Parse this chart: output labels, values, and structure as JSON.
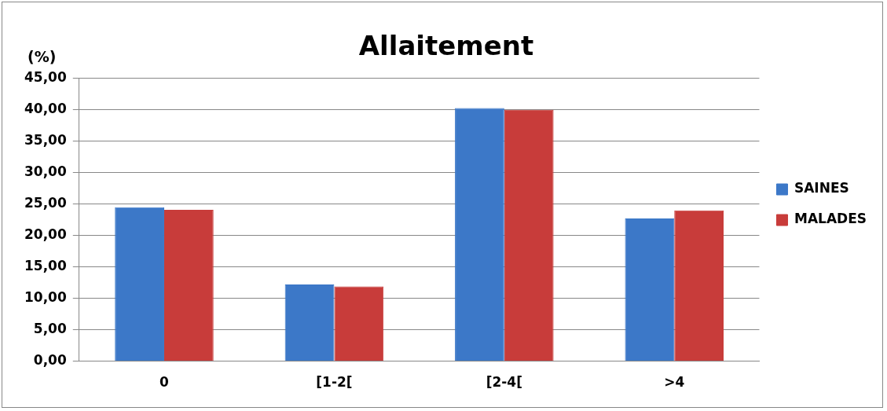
{
  "chart_data": {
    "type": "bar",
    "title": "Allaitement",
    "ylabel": "(%)",
    "categories": [
      "0",
      "[1-2[",
      "[2-4[",
      ">4"
    ],
    "series": [
      {
        "name": "SAINES",
        "color": "#3c78c8",
        "values": [
          24.5,
          12.2,
          40.3,
          22.7
        ]
      },
      {
        "name": "MALADES",
        "color": "#c83c3a",
        "values": [
          24.1,
          11.9,
          40.0,
          24.0
        ]
      }
    ],
    "ylim": [
      0,
      45
    ],
    "yticks": [
      {
        "value": 0,
        "label": "0,00"
      },
      {
        "value": 5,
        "label": "5,00"
      },
      {
        "value": 10,
        "label": "10,00"
      },
      {
        "value": 15,
        "label": "15,00"
      },
      {
        "value": 20,
        "label": "20,00"
      },
      {
        "value": 25,
        "label": "25,00"
      },
      {
        "value": 30,
        "label": "30,00"
      },
      {
        "value": 35,
        "label": "35,00"
      },
      {
        "value": 40,
        "label": "40,00"
      },
      {
        "value": 45,
        "label": "45,00"
      }
    ],
    "grid": "y",
    "legend": "right"
  }
}
